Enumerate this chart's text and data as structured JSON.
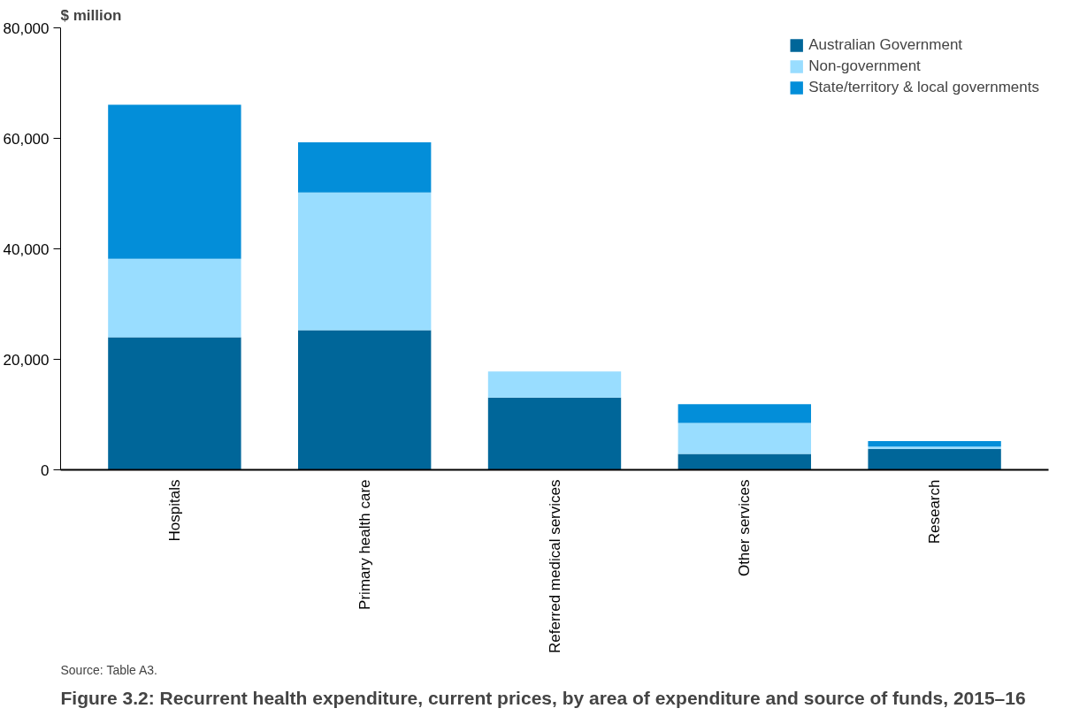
{
  "chart_data": {
    "type": "bar",
    "stacked": true,
    "title": "Figure 3.2: Recurrent health expenditure, current prices, by area of expenditure and source of funds, 2015–16",
    "ylabel": "$ million",
    "categories": [
      "Hospitals",
      "Primary health care",
      "Referred medical services",
      "Other services",
      "Research"
    ],
    "series": [
      {
        "name": "Australian Government",
        "color": "#006699",
        "values": [
          24000,
          25300,
          13100,
          2900,
          3800
        ]
      },
      {
        "name": "Non-government",
        "color": "#99ddff",
        "values": [
          14200,
          24900,
          4700,
          5600,
          400
        ]
      },
      {
        "name": "State/territory & local governments",
        "color": "#038ed9",
        "values": [
          27900,
          9100,
          0,
          3400,
          1000
        ]
      }
    ],
    "ylim": [
      0,
      80000
    ],
    "yticks": [
      {
        "value": 0,
        "label": "0"
      },
      {
        "value": 20000,
        "label": "20,000"
      },
      {
        "value": 40000,
        "label": "40,000"
      },
      {
        "value": 60000,
        "label": "60,000"
      },
      {
        "value": 80000,
        "label": "80,000"
      }
    ],
    "grid": false,
    "legend": "top right",
    "annotations": [
      "Source: Table A3."
    ]
  }
}
